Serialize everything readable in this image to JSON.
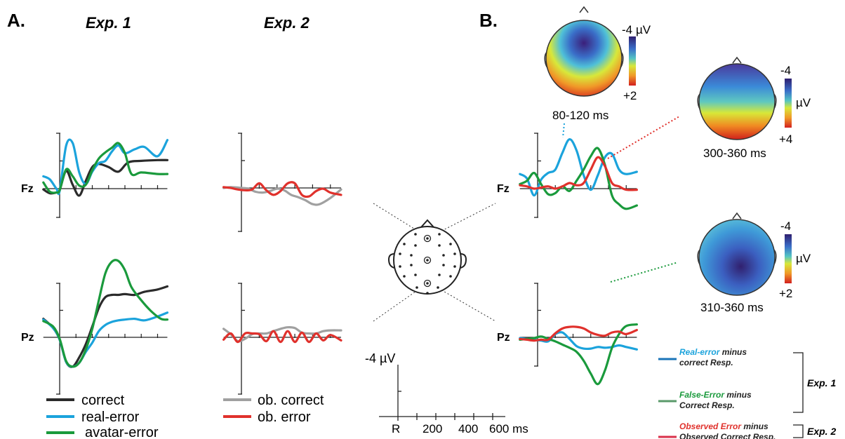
{
  "panels": {
    "a_label": "A.",
    "b_label": "B.",
    "exp1_title": "Exp. 1",
    "exp2_title": "Exp. 2",
    "fz": "Fz",
    "pz": "Pz"
  },
  "legend_a": {
    "exp1": [
      {
        "label": "correct",
        "color": "#2b2b2b"
      },
      {
        "label": "real-error",
        "color": "#1ba3dc"
      },
      {
        "label": "avatar-error",
        "color": "#1a9a3c"
      }
    ],
    "exp2": [
      {
        "label": "ob. correct",
        "color": "#a0a0a0"
      },
      {
        "label": "ob. error",
        "color": "#e0312c"
      }
    ]
  },
  "scale_bar": {
    "amplitude": "-4 µV",
    "ticks": [
      "R",
      "200",
      "400",
      "600 ms"
    ]
  },
  "topomaps": [
    {
      "window": "80-120 ms",
      "scale_top": "-4",
      "scale_bottom": "+2",
      "unit": "µV"
    },
    {
      "window": "300-360 ms",
      "scale_top": "-4",
      "scale_bottom": "+4",
      "unit": "µV"
    },
    {
      "window": "310-360 ms",
      "scale_top": "-4",
      "scale_bottom": "+2",
      "unit": "µV"
    }
  ],
  "legend_b": [
    {
      "colored": "Real-error",
      "rest1": " minus",
      "line2": "correct Resp.",
      "color": "#1ba3dc",
      "swatch": "#1a74b8"
    },
    {
      "colored": "False-Error",
      "rest1": " minus",
      "line2": "Correct Resp.",
      "color": "#1a9a3c",
      "swatch": "#5a9a6a"
    },
    {
      "colored": "Observed Error",
      "rest1": " minus",
      "line2": "Observed Correct Resp.",
      "color": "#e0312c",
      "swatch": "#d9304a"
    }
  ],
  "bracket_labels": {
    "exp1": "Exp. 1",
    "exp2": "Exp. 2"
  },
  "chart_data": {
    "type": "line",
    "note_units": "x in ms relative to response R, y in µV (negative up)",
    "x_ticks": [
      "R",
      "200",
      "400",
      "600 ms"
    ],
    "series_colors": {
      "correct": "#2b2b2b",
      "real-error": "#1ba3dc",
      "avatar-error": "#1a9a3c",
      "ob. correct": "#a0a0a0",
      "ob. error": "#e0312c"
    },
    "plots": [
      {
        "id": "exp1-fz",
        "series": [
          {
            "name": "correct",
            "x": [
              -100,
              -60,
              -20,
              0,
              40,
              80,
              120,
              160,
              200,
              240,
              300,
              360,
              420,
              500,
              600,
              660
            ],
            "y": [
              0.1,
              0.6,
              0.5,
              0.2,
              -2.3,
              -0.5,
              0.9,
              -1,
              -2.8,
              -3.2,
              -2.8,
              -2.2,
              -3.4,
              -3.6,
              -3.7,
              -3.7
            ]
          },
          {
            "name": "real-error",
            "x": [
              -100,
              -60,
              -20,
              0,
              40,
              80,
              120,
              160,
              200,
              240,
              280,
              320,
              360,
              400,
              460,
              520,
              600,
              660
            ],
            "y": [
              -1.6,
              -1.2,
              0,
              0.3,
              -5.6,
              -5.9,
              -2.1,
              -0.6,
              -2.2,
              -3.3,
              -3.6,
              -4.8,
              -5.6,
              -4.6,
              -5.1,
              -5.4,
              -4.2,
              -6.3
            ]
          },
          {
            "name": "avatar-error",
            "x": [
              -100,
              -60,
              -20,
              0,
              40,
              80,
              120,
              160,
              200,
              240,
              280,
              320,
              360,
              400,
              440,
              500,
              600,
              660
            ],
            "y": [
              -0.8,
              0.4,
              0.5,
              0.2,
              -2.5,
              -1.6,
              -0.4,
              -0.5,
              -2.4,
              -3.9,
              -4.7,
              -5.3,
              -5.9,
              -4.6,
              -1.9,
              -2.1,
              -1.9,
              -1.9
            ]
          }
        ]
      },
      {
        "id": "exp1-pz",
        "series": [
          {
            "name": "correct",
            "x": [
              -100,
              -40,
              0,
              40,
              80,
              120,
              160,
              200,
              240,
              280,
              320,
              360,
              400,
              460,
              520,
              600,
              660
            ],
            "y": [
              -2.4,
              -1.2,
              0.3,
              3.2,
              3.8,
              2.6,
              0.9,
              -1.4,
              -3.8,
              -5.2,
              -5.5,
              -5.5,
              -5.6,
              -5.5,
              -5.9,
              -6.2,
              -6.6
            ]
          },
          {
            "name": "real-error",
            "x": [
              -100,
              -40,
              0,
              40,
              80,
              120,
              160,
              200,
              240,
              280,
              320,
              360,
              400,
              460,
              520,
              600,
              660
            ],
            "y": [
              -2.3,
              -1.2,
              0.3,
              3.2,
              3.8,
              3.3,
              1.9,
              0.7,
              -0.8,
              -1.6,
              -2,
              -2.2,
              -2.3,
              -2.4,
              -2.2,
              -2.7,
              -3.2
            ]
          },
          {
            "name": "avatar-error",
            "x": [
              -100,
              -40,
              0,
              40,
              80,
              120,
              160,
              200,
              240,
              280,
              320,
              360,
              400,
              440,
              500,
              560,
              620,
              660
            ],
            "y": [
              -2.1,
              -1.4,
              0.2,
              3.1,
              3.8,
              3.3,
              1.6,
              -1.1,
              -4.8,
              -8.3,
              -9.8,
              -9.9,
              -8.7,
              -6.5,
              -4.8,
              -3.4,
              -2.4,
              -2.3
            ]
          }
        ]
      },
      {
        "id": "exp2-fz",
        "series": [
          {
            "name": "ob. correct",
            "x": [
              -100,
              -60,
              0,
              40,
              80,
              120,
              160,
              200,
              240,
              280,
              320,
              360,
              400,
              440,
              500,
              560
            ],
            "y": [
              0,
              -0.1,
              0,
              0.1,
              0.5,
              0.6,
              0.4,
              0.1,
              0.3,
              0.9,
              1.2,
              1.6,
              2.1,
              2.1,
              1.3,
              0.2
            ]
          },
          {
            "name": "ob. error",
            "x": [
              -100,
              -60,
              -20,
              20,
              60,
              100,
              140,
              180,
              220,
              260,
              300,
              340,
              380,
              420,
              460,
              500,
              560
            ],
            "y": [
              -0.1,
              0,
              0.2,
              0.3,
              0.2,
              -0.6,
              0.3,
              0.9,
              0.4,
              -0.6,
              -0.6,
              0.9,
              1.1,
              0.4,
              0.1,
              0.6,
              0.9
            ]
          }
        ]
      },
      {
        "id": "exp2-pz",
        "series": [
          {
            "name": "ob. correct",
            "x": [
              -100,
              -60,
              -20,
              20,
              60,
              100,
              140,
              180,
              220,
              260,
              300,
              340,
              380,
              420,
              460,
              500,
              560
            ],
            "y": [
              -1.1,
              -0.4,
              0.5,
              0.2,
              -0.4,
              -0.5,
              -0.5,
              -0.8,
              -1.1,
              -1.3,
              -1.2,
              -0.6,
              -0.5,
              -0.5,
              -0.8,
              -0.9,
              -0.9
            ]
          },
          {
            "name": "ob. error",
            "x": [
              -100,
              -60,
              -20,
              20,
              60,
              100,
              140,
              180,
              220,
              260,
              300,
              340,
              380,
              420,
              460,
              500,
              560
            ],
            "y": [
              0.3,
              -0.5,
              0.6,
              -0.5,
              -0.5,
              -0.4,
              0.5,
              -0.8,
              0.6,
              -0.8,
              0.6,
              -0.6,
              0.6,
              -0.5,
              0.4,
              -0.3,
              0.4
            ]
          }
        ]
      },
      {
        "id": "diff-fz",
        "series": [
          {
            "name": "Real-error minus correct Resp.",
            "x": [
              -100,
              -60,
              -20,
              20,
              60,
              100,
              140,
              180,
              220,
              260,
              300,
              340,
              380,
              420,
              460,
              500,
              560
            ],
            "y": [
              -1.3,
              -0.9,
              0.6,
              -0.8,
              -1.4,
              -1.7,
              -3.2,
              -4.4,
              -3.4,
              -1.2,
              0.1,
              -1.2,
              -2.8,
              -3.1,
              -1.7,
              -1.3,
              -1.5
            ]
          },
          {
            "name": "False-Error minus Correct Resp.",
            "x": [
              -100,
              -60,
              -20,
              20,
              60,
              100,
              140,
              180,
              220,
              260,
              300,
              340,
              380,
              420,
              460,
              500,
              560
            ],
            "y": [
              -0.4,
              -0.7,
              -1.4,
              -0.4,
              0.5,
              0.4,
              -0.2,
              0.2,
              -0.7,
              -1.7,
              -2.9,
              -3.6,
              -2.1,
              0.6,
              1.4,
              1.8,
              1.5
            ]
          },
          {
            "name": "Observed Error minus Observed Correct Resp.",
            "x": [
              -100,
              -60,
              -20,
              20,
              60,
              100,
              140,
              180,
              220,
              260,
              300,
              340,
              380,
              420,
              460,
              500,
              560
            ],
            "y": [
              -0.3,
              -0.2,
              0,
              -0.1,
              -0.2,
              0,
              -0.2,
              -0.5,
              -0.3,
              -0.5,
              -1.7,
              -2.8,
              -2,
              -0.5,
              -0.2,
              0.1,
              0.1
            ]
          }
        ]
      },
      {
        "id": "diff-pz",
        "series": [
          {
            "name": "Real-error minus correct Resp.",
            "x": [
              -100,
              -60,
              -20,
              20,
              60,
              100,
              140,
              180,
              220,
              260,
              300,
              340,
              380,
              420,
              460,
              500,
              560
            ],
            "y": [
              0.1,
              0.2,
              0.3,
              0.4,
              0.5,
              -0.4,
              -0.6,
              0.2,
              1.1,
              1.4,
              1.4,
              1.2,
              1.3,
              1.2,
              1.0,
              1.2,
              1.5
            ]
          },
          {
            "name": "False-Error minus Correct Resp.",
            "x": [
              -100,
              -60,
              -20,
              20,
              60,
              100,
              140,
              180,
              220,
              260,
              300,
              340,
              380,
              420,
              460,
              500,
              560
            ],
            "y": [
              0.3,
              0.2,
              0.1,
              -0.1,
              0.2,
              0.5,
              0.9,
              1.3,
              1.8,
              2.9,
              4.5,
              5.8,
              4.1,
              1.3,
              -0.4,
              -1.4,
              -1.6
            ]
          },
          {
            "name": "Observed Error minus Observed Correct Resp.",
            "x": [
              -100,
              -60,
              -20,
              20,
              60,
              100,
              140,
              180,
              220,
              260,
              300,
              340,
              380,
              420,
              460,
              500,
              560
            ],
            "y": [
              0.2,
              0.3,
              0.4,
              0.3,
              0.3,
              -0.5,
              -1.1,
              -1.3,
              -1.3,
              -1.1,
              -0.6,
              -0.3,
              -0.2,
              -0.6,
              -0.7,
              -0.4,
              -0.9
            ]
          }
        ]
      }
    ]
  }
}
